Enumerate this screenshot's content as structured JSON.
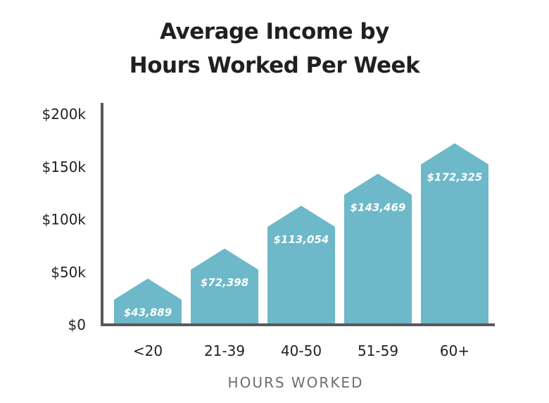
{
  "chart_data": {
    "type": "bar",
    "title_lines": [
      "Average Income by",
      "Hours Worked Per Week"
    ],
    "xlabel": "HOURS WORKED",
    "ylabel": "",
    "categories": [
      "<20",
      "21-39",
      "40-50",
      "51-59",
      "60+"
    ],
    "values": [
      43889,
      72398,
      113054,
      143469,
      172325
    ],
    "value_labels": [
      "$43,889",
      "$72,398",
      "$113,054",
      "$143,469",
      "$172,325"
    ],
    "ylim": [
      0,
      200000
    ],
    "yticks": [
      0,
      50000,
      100000,
      150000,
      200000
    ],
    "ytick_labels": [
      "$0",
      "$50k",
      "$100k",
      "$150k",
      "$200k"
    ],
    "grid": false,
    "bar_color": "#6db8c9",
    "axis_color": "#58595b"
  }
}
